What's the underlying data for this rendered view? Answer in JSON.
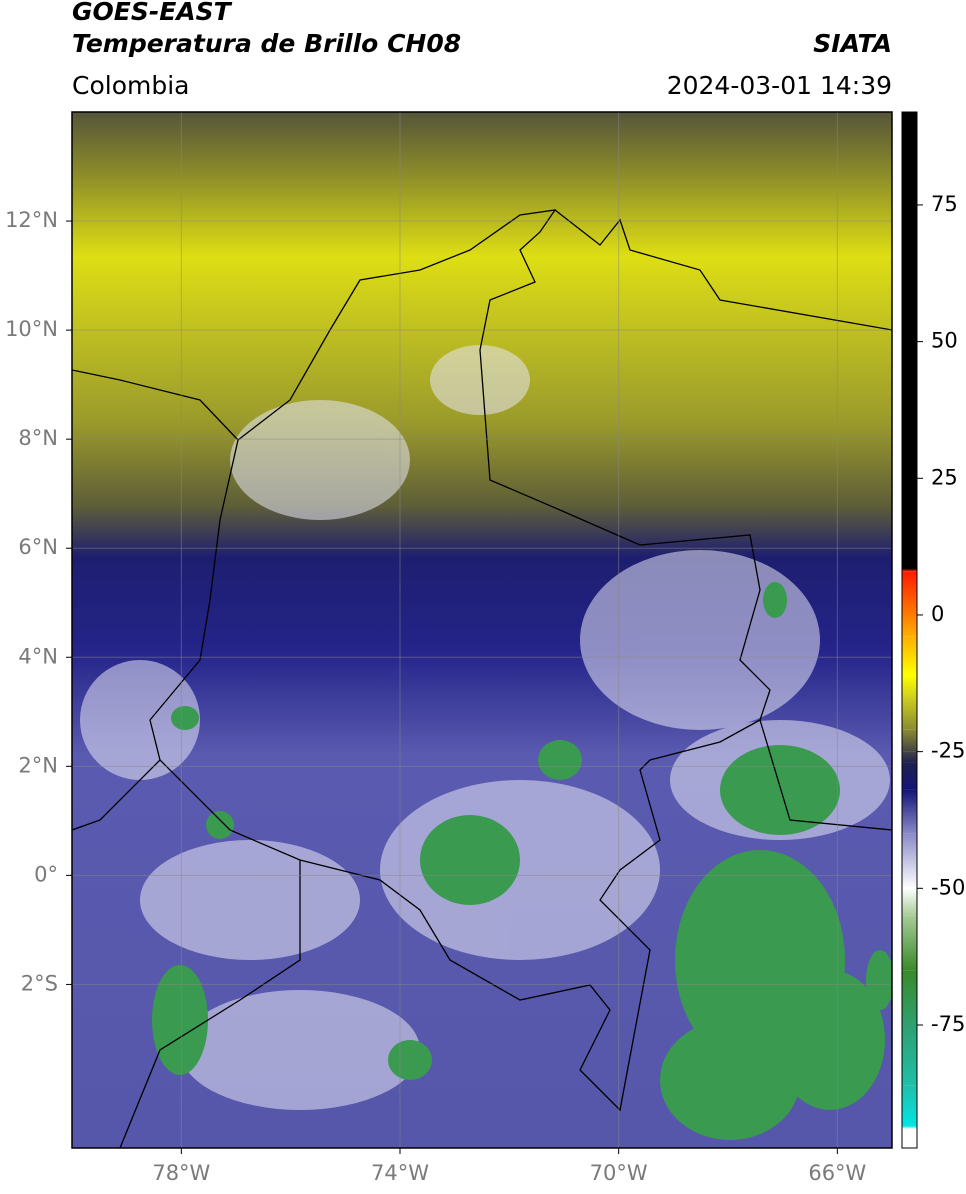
{
  "header": {
    "title": "GOES-EAST",
    "subtitle": "Temperatura de Brillo CH08",
    "source": "SIATA",
    "region": "Colombia",
    "timestamp": "2024-03-01 14:39"
  },
  "map": {
    "xlim": [
      -80,
      -65
    ],
    "ylim": [
      -5,
      14
    ],
    "xticks": [
      {
        "value": -78,
        "label": "78°W"
      },
      {
        "value": -74,
        "label": "74°W"
      },
      {
        "value": -70,
        "label": "70°W"
      },
      {
        "value": -66,
        "label": "66°W"
      }
    ],
    "yticks": [
      {
        "value": 12,
        "label": "12°N"
      },
      {
        "value": 10,
        "label": "10°N"
      },
      {
        "value": 8,
        "label": "8°N"
      },
      {
        "value": 6,
        "label": "6°N"
      },
      {
        "value": 4,
        "label": "4°N"
      },
      {
        "value": 2,
        "label": "2°N"
      },
      {
        "value": 0,
        "label": "0°"
      },
      {
        "value": -2,
        "label": "2°S"
      }
    ],
    "grid": true
  },
  "colorbar": {
    "lim": [
      -97.5,
      92
    ],
    "ticks": [
      -75,
      -50,
      -25,
      0,
      25,
      50,
      75
    ],
    "colormap": [
      {
        "value": -97.5,
        "color": "#ffffff"
      },
      {
        "value": -94,
        "color": "#ffffff"
      },
      {
        "value": -93.5,
        "color": "#00e5e5"
      },
      {
        "value": -86,
        "color": "#1fbfa8"
      },
      {
        "value": -75,
        "color": "#2fa070"
      },
      {
        "value": -65,
        "color": "#3a8a2a"
      },
      {
        "value": -55,
        "color": "#a8cc98"
      },
      {
        "value": -50,
        "color": "#ffffff"
      },
      {
        "value": -40,
        "color": "#8a8ac8"
      },
      {
        "value": -32,
        "color": "#141478"
      },
      {
        "value": -27,
        "color": "#202050"
      },
      {
        "value": -25,
        "color": "#444444"
      },
      {
        "value": -21,
        "color": "#8a8a30"
      },
      {
        "value": -15,
        "color": "#d0d020"
      },
      {
        "value": -11,
        "color": "#ffff00"
      },
      {
        "value": -4,
        "color": "#ffb000"
      },
      {
        "value": 1,
        "color": "#ff7000"
      },
      {
        "value": 8,
        "color": "#ff1a00"
      },
      {
        "value": 8.5,
        "color": "#000000"
      },
      {
        "value": 92,
        "color": "#000000"
      }
    ]
  }
}
